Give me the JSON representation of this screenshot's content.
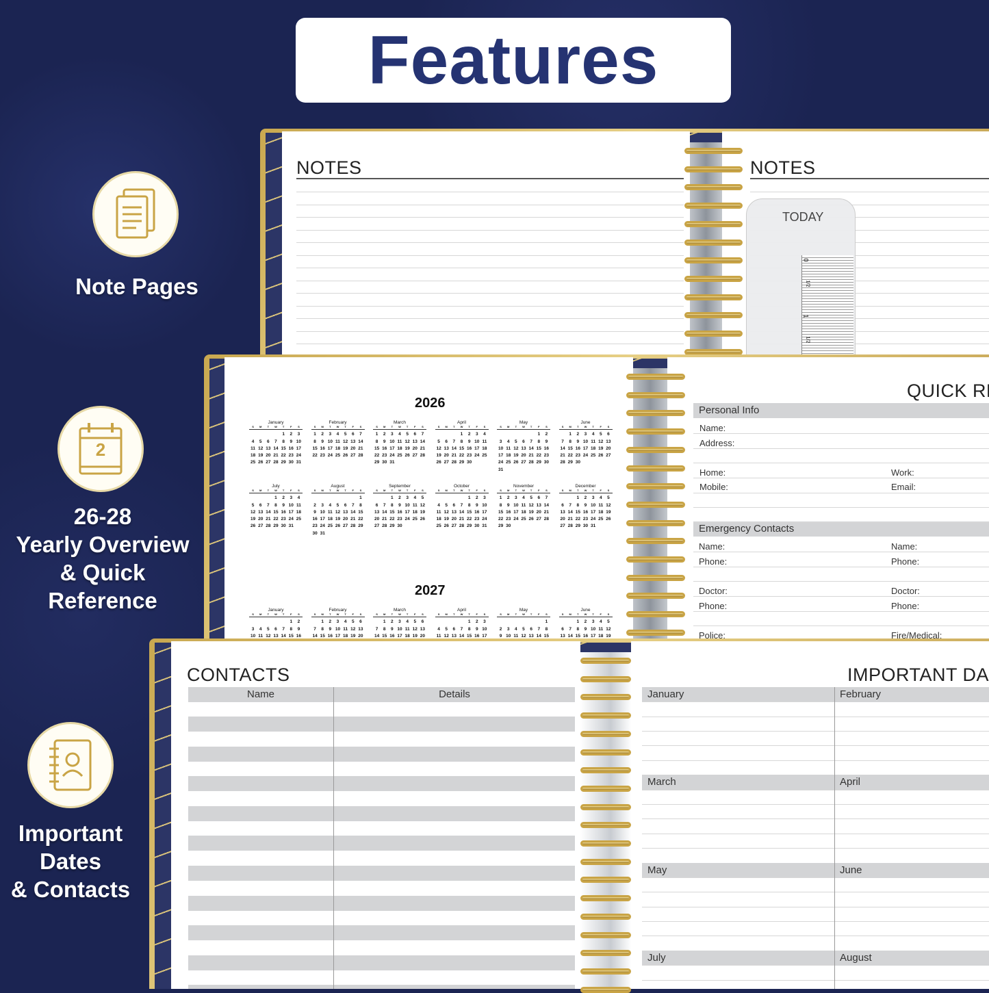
{
  "title": "Features",
  "features": [
    {
      "label_lines": [
        "Note Pages"
      ],
      "icon": "document-pages-icon"
    },
    {
      "label_lines": [
        "26-28",
        "Yearly Overview",
        "& Quick",
        "Reference"
      ],
      "icon": "calendar-icon",
      "icon_text": "2"
    },
    {
      "label_lines": [
        "Important",
        "Dates",
        "& Contacts"
      ],
      "icon": "address-book-icon"
    }
  ],
  "colors": {
    "background": "#1b2452",
    "title": "#253372",
    "gold": "#c9a445",
    "gray_band": "#d3d4d6"
  },
  "notes": {
    "left_title": "NOTES",
    "right_title": "NOTES",
    "bookmark_label": "TODAY",
    "ruler_marks": [
      "0",
      "1/2",
      "1",
      "1/2"
    ]
  },
  "yearly": {
    "years": [
      {
        "year": "2026",
        "months": [
          {
            "name": "January",
            "start": 4,
            "days": 31
          },
          {
            "name": "February",
            "start": 0,
            "days": 28
          },
          {
            "name": "March",
            "start": 0,
            "days": 31
          },
          {
            "name": "April",
            "start": 3,
            "days": 30
          },
          {
            "name": "May",
            "start": 5,
            "days": 31
          },
          {
            "name": "June",
            "start": 1,
            "days": 30
          },
          {
            "name": "July",
            "start": 3,
            "days": 31
          },
          {
            "name": "August",
            "start": 6,
            "days": 31
          },
          {
            "name": "September",
            "start": 2,
            "days": 30
          },
          {
            "name": "October",
            "start": 4,
            "days": 31
          },
          {
            "name": "November",
            "start": 0,
            "days": 30
          },
          {
            "name": "December",
            "start": 2,
            "days": 31
          }
        ]
      },
      {
        "year": "2027",
        "months": [
          {
            "name": "January",
            "start": 5,
            "days": 31
          },
          {
            "name": "February",
            "start": 1,
            "days": 28
          },
          {
            "name": "March",
            "start": 1,
            "days": 31
          },
          {
            "name": "April",
            "start": 4,
            "days": 30
          },
          {
            "name": "May",
            "start": 6,
            "days": 31
          },
          {
            "name": "June",
            "start": 2,
            "days": 30
          }
        ]
      }
    ],
    "weekdays": [
      "S",
      "M",
      "T",
      "W",
      "T",
      "F",
      "S"
    ]
  },
  "quick_reference": {
    "title": "QUICK RE",
    "personal_header": "Personal Info",
    "name": "Name:",
    "address": "Address:",
    "home": "Home:",
    "work": "Work:",
    "mobile": "Mobile:",
    "email": "Email:",
    "emergency_header": "Emergency Contacts",
    "ename1": "Name:",
    "ename2": "Name:",
    "ephone1": "Phone:",
    "ephone2": "Phone:",
    "doctor1": "Doctor:",
    "doctor2": "Doctor:",
    "dphone1": "Phone:",
    "dphone2": "Phone:",
    "police": "Police:",
    "fire": "Fire/Medical:"
  },
  "contacts": {
    "title": "CONTACTS",
    "col_name": "Name",
    "col_details": "Details"
  },
  "important_dates": {
    "title": "IMPORTANT DA",
    "months": [
      "January",
      "February",
      "March",
      "April",
      "May",
      "June",
      "July",
      "August"
    ]
  }
}
